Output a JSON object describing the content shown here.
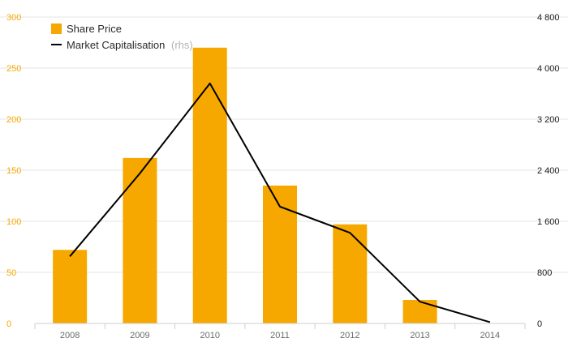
{
  "chart_data": {
    "type": "bar",
    "categories": [
      "2008",
      "2009",
      "2010",
      "2011",
      "2012",
      "2013",
      "2014"
    ],
    "series": [
      {
        "name": "Share Price",
        "type": "bar",
        "axis": "left",
        "values": [
          72,
          162,
          270,
          135,
          97,
          23,
          0
        ]
      },
      {
        "name": "Market Capitalisation",
        "name_suffix": "(rhs)",
        "type": "line",
        "axis": "right",
        "values": [
          1050,
          2350,
          3760,
          1830,
          1420,
          340,
          20
        ]
      }
    ],
    "y_left": {
      "lim": [
        0,
        300
      ],
      "ticks": [
        "0",
        "50",
        "100",
        "150",
        "200",
        "250",
        "300"
      ],
      "values": [
        0,
        50,
        100,
        150,
        200,
        250,
        300
      ]
    },
    "y_right": {
      "lim": [
        0,
        4800
      ],
      "ticks": [
        "0",
        "800",
        "1 600",
        "2 400",
        "3 200",
        "4 000",
        "4 800"
      ],
      "values": [
        0,
        800,
        1600,
        2400,
        3200,
        4000,
        4800
      ]
    },
    "grid": true,
    "legend": "top-left",
    "colors": {
      "bar": "#f7a800",
      "line": "#000000",
      "grid": "#e6e6e6",
      "left_tick": "#f7a800",
      "right_tick": "#1a1a1a",
      "x_tick": "#6b6b6b"
    }
  }
}
